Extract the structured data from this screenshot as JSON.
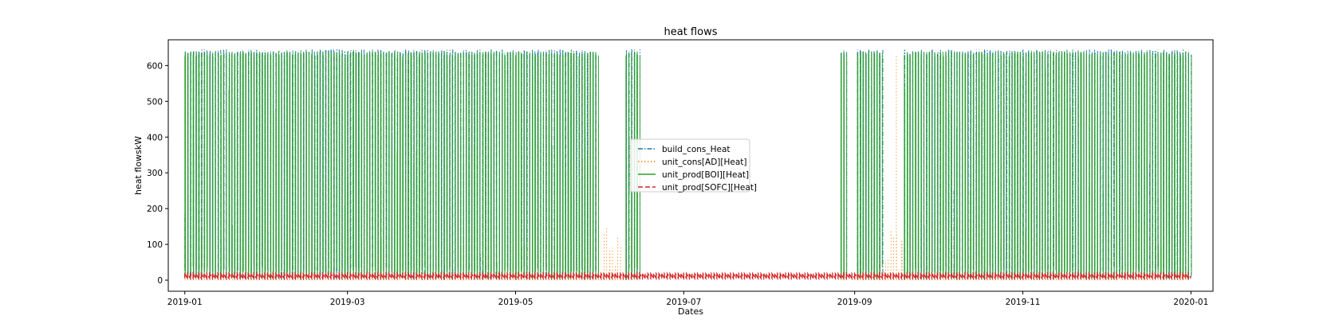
{
  "chart_data": {
    "type": "line",
    "title": "heat flows",
    "xlabel": "Dates",
    "ylabel": "heat flowskW",
    "x_range": [
      "2018-12-26",
      "2020-01-09"
    ],
    "ylim": [
      -31,
      672
    ],
    "x_ticks": [
      "2019-01",
      "2019-03",
      "2019-05",
      "2019-07",
      "2019-09",
      "2019-11",
      "2020-01"
    ],
    "y_ticks": [
      0,
      100,
      200,
      300,
      400,
      500,
      600
    ],
    "grid": false,
    "legend_position": "center",
    "series": [
      {
        "name": "build_cons_Heat",
        "style": "dashdot",
        "color": "#1f77b4",
        "active_intervals": [
          [
            "2019-01-01",
            "2019-05-30"
          ],
          [
            "2019-06-10",
            "2019-06-14"
          ],
          [
            "2019-08-27",
            "2019-08-28"
          ],
          [
            "2019-09-02",
            "2019-09-10"
          ],
          [
            "2019-09-19",
            "2019-12-31"
          ]
        ],
        "max": 645,
        "min": 0
      },
      {
        "name": "unit_cons[AD][Heat]",
        "style": "dotted",
        "color": "#ff7f0e",
        "active_intervals": [
          [
            "2019-01-01",
            "2019-06-14"
          ],
          [
            "2019-08-27",
            "2019-08-28"
          ],
          [
            "2019-09-02",
            "2019-12-31"
          ]
        ],
        "max": 640,
        "min": 0
      },
      {
        "name": "unit_prod[BOI][Heat]",
        "style": "solid",
        "color": "#2ca02c",
        "active_intervals": [
          [
            "2019-01-01",
            "2019-05-30"
          ],
          [
            "2019-06-10",
            "2019-06-14"
          ],
          [
            "2019-08-27",
            "2019-08-28"
          ],
          [
            "2019-09-02",
            "2019-09-10"
          ],
          [
            "2019-09-19",
            "2019-12-31"
          ]
        ],
        "max": 640,
        "min": 0
      },
      {
        "name": "unit_prod[SOFC][Heat]",
        "style": "dashed",
        "color": "#d62728",
        "level": 10,
        "max": 18,
        "min": 5
      }
    ]
  }
}
